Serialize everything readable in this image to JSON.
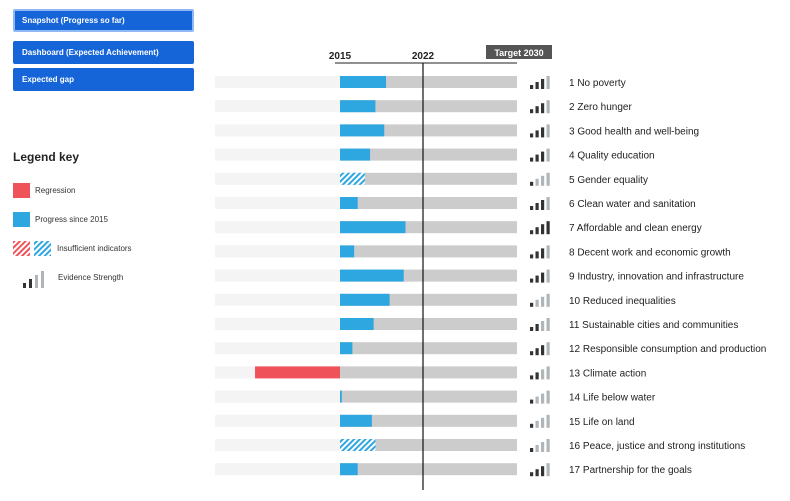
{
  "tabs": [
    {
      "label": "Snapshot (Progress so far)",
      "active": true
    },
    {
      "label": "Dashboard (Expected Achievement)",
      "active": false
    },
    {
      "label": "Expected gap",
      "active": false
    }
  ],
  "legend": {
    "title": "Legend key",
    "items": [
      {
        "label": "Regression",
        "icon": "regression-swatch",
        "color": "#f0525a"
      },
      {
        "label": "Progress since 2015",
        "icon": "progress-swatch",
        "color": "#2ea6e0"
      },
      {
        "label": "Insufficient indicators",
        "icon": "hatched-swatch",
        "color": "#2ea6e0"
      },
      {
        "label": "Evidence Strength",
        "icon": "evidence-strength-icon",
        "color": "#333333"
      }
    ]
  },
  "colors": {
    "progress": "#2ea6e0",
    "regression": "#f0525a",
    "remaining": "#cccccc",
    "faded_track": "#f4f4f4",
    "target_label_bg": "#555555",
    "evidence_dark": "#333333",
    "evidence_light": "#b0b5ba"
  },
  "chart_data": {
    "type": "bar",
    "orientation": "horizontal",
    "axis_markers": [
      "2015",
      "2022",
      "Target 2030"
    ],
    "categories": [
      "1 No poverty",
      "2 Zero hunger",
      "3 Good health and well-being",
      "4 Quality education",
      "5 Gender equality",
      "6 Clean water and sanitation",
      "7 Affordable and clean energy",
      "8 Decent work and economic growth",
      "9 Industry, innovation and infrastructure",
      "10 Reduced inequalities",
      "11 Sustainable cities and communities",
      "12 Responsible consumption and production",
      "13 Climate action",
      "14 Life below water",
      "15 Life on land",
      "16 Peace, justice and strong institutions",
      "17 Partnership for the goals"
    ],
    "series": [
      {
        "values": [
          0.26,
          0.2,
          0.25,
          0.17,
          0.14,
          0.1,
          0.37,
          0.08,
          0.36,
          0.28,
          0.19,
          0.07,
          -0.48,
          0.01,
          0.18,
          0.2,
          0.1
        ]
      }
    ],
    "insufficient_indicators": [
      false,
      false,
      false,
      false,
      true,
      false,
      false,
      false,
      false,
      false,
      false,
      false,
      false,
      false,
      false,
      true,
      false
    ],
    "evidence_strength": [
      3,
      3,
      3,
      3,
      1,
      3,
      4,
      3,
      3,
      1,
      2,
      3,
      2,
      1,
      1,
      1,
      3
    ],
    "xlim": [
      -0.48,
      1.0
    ]
  }
}
